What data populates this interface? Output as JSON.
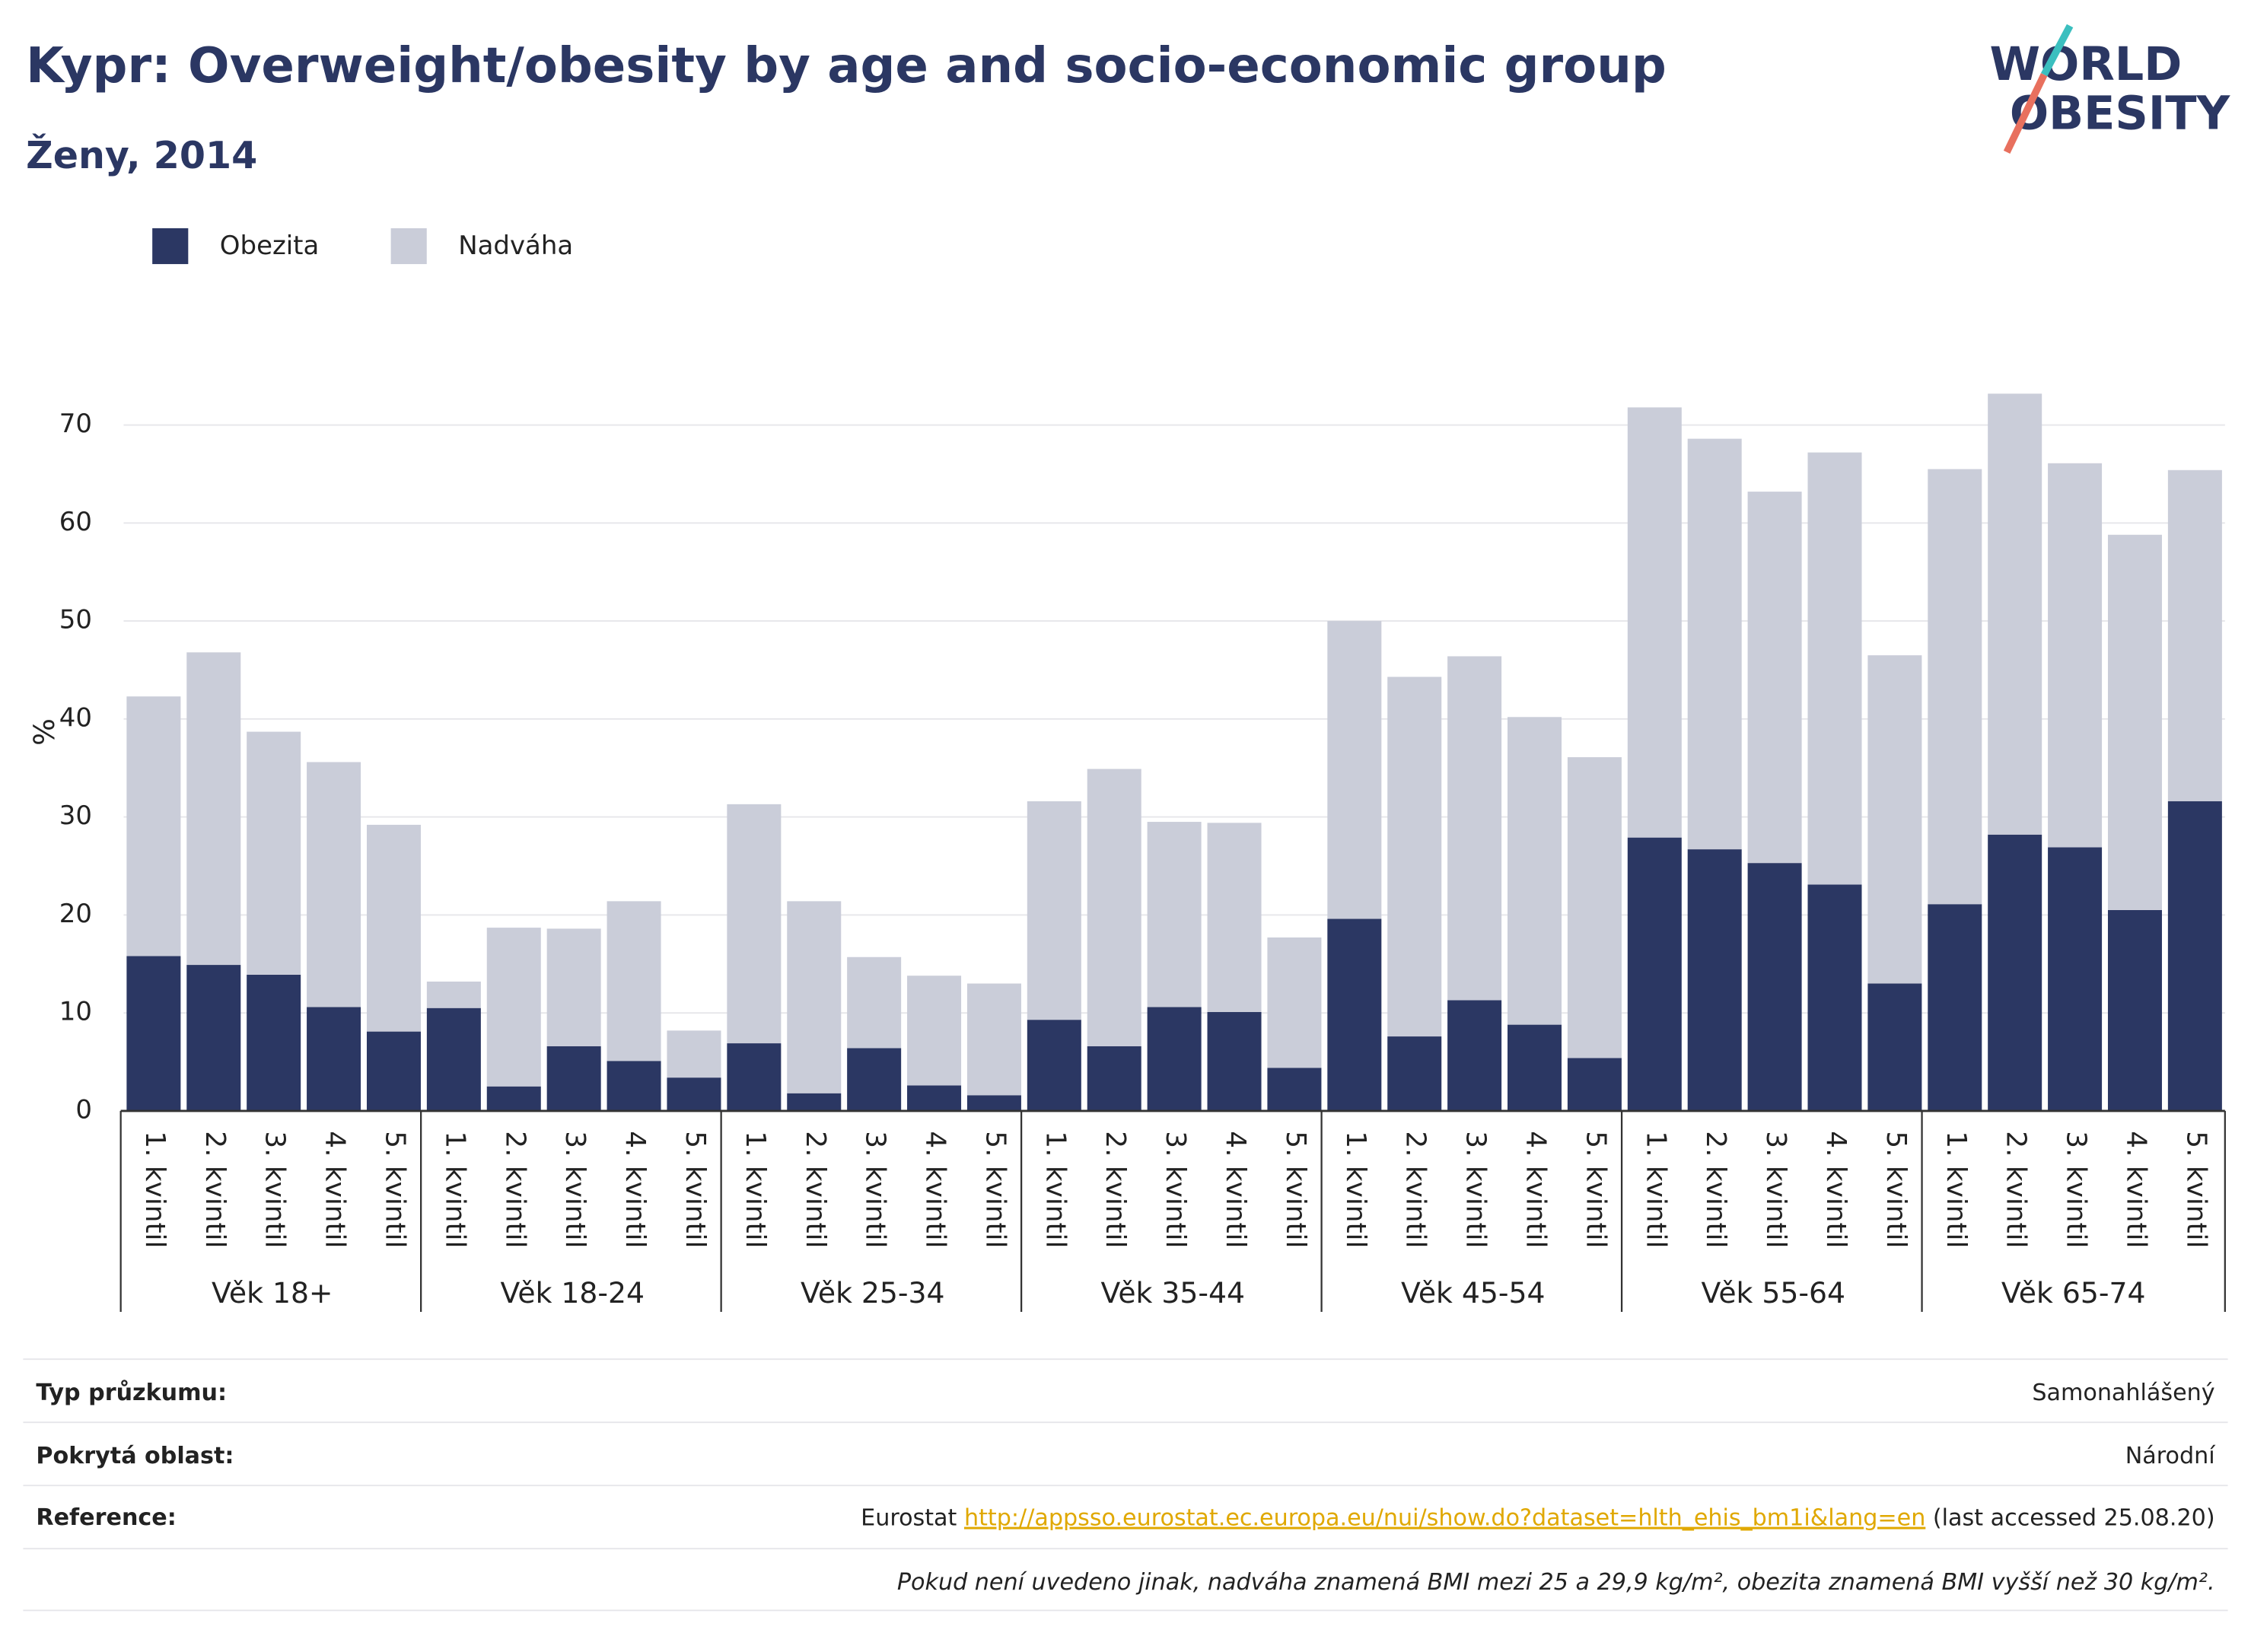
{
  "chart_data": {
    "type": "stacked_bar",
    "title": "Kypr: Overweight/obesity by age and socio-economic group",
    "subtitle": "Ženy, 2014",
    "y_label": "%",
    "groups": [
      "Věk 18+",
      "Věk 18-24",
      "Věk 25-34",
      "Věk 35-44",
      "Věk 45-54",
      "Věk 55-64",
      "Věk 65-74"
    ],
    "categories": [
      "1. kvintil",
      "2. kvintil",
      "3. kvintil",
      "4. kvintil",
      "5. kvintil",
      "1. kvintil",
      "2. kvintil",
      "3. kvintil",
      "4. kvintil",
      "5. kvintil",
      "1. kvintil",
      "2. kvintil",
      "3. kvintil",
      "4. kvintil",
      "5. kvintil",
      "1. kvintil",
      "2. kvintil",
      "3. kvintil",
      "4. kvintil",
      "5. kvintil",
      "1. kvintil",
      "2. kvintil",
      "3. kvintil",
      "4. kvintil",
      "5. kvintil",
      "1. kvintil",
      "2. kvintil",
      "3. kvintil",
      "4. kvintil",
      "5. kvintil",
      "1. kvintil",
      "2. kvintil",
      "3. kvintil",
      "4. kvintil",
      "5. kvintil"
    ],
    "series": [
      {
        "name": "Obezita",
        "color": "#2b3763",
        "values": [
          15.8,
          14.9,
          13.9,
          10.6,
          8.1,
          10.5,
          2.5,
          6.6,
          5.1,
          3.4,
          6.9,
          1.8,
          6.4,
          2.6,
          1.6,
          9.3,
          6.6,
          10.6,
          10.1,
          4.4,
          19.6,
          7.6,
          11.3,
          8.8,
          5.4,
          27.9,
          26.7,
          25.3,
          23.1,
          13.0,
          21.1,
          28.2,
          26.9,
          20.5,
          31.6
        ]
      },
      {
        "name": "Nadváha",
        "color": "#cacdd9",
        "values": [
          26.5,
          31.9,
          24.8,
          25.0,
          21.1,
          2.7,
          16.2,
          12.0,
          16.3,
          4.8,
          24.4,
          19.6,
          9.3,
          11.2,
          11.4,
          22.3,
          28.3,
          18.9,
          19.3,
          13.3,
          30.4,
          36.7,
          35.1,
          31.4,
          30.7,
          43.9,
          41.9,
          37.9,
          44.1,
          33.5,
          44.4,
          45.0,
          39.2,
          38.3,
          33.8
        ]
      }
    ],
    "ylim": [
      0,
      75
    ],
    "yticks": [
      0,
      10,
      20,
      30,
      40,
      50,
      60,
      70
    ],
    "grid": true
  },
  "logo": [
    "WORLD",
    "OBESITY"
  ],
  "footer": {
    "rows": [
      {
        "label": "Typ průzkumu:",
        "value": "Samonahlášený"
      },
      {
        "label": "Pokrytá oblast:",
        "value": "Národní"
      }
    ],
    "reference": {
      "label": "Reference:",
      "source": "Eurostat",
      "link": "http://appsso.eurostat.ec.europa.eu/nui/show.do?dataset=hlth_ehis_bm1i&lang=en",
      "note": "(last accessed 25.08.20)"
    },
    "definition": "Pokud není uvedeno jinak, nadváha znamená BMI mezi 25 a 29,9 kg/m², obezita znamená BMI vyšší než 30 kg/m²."
  }
}
